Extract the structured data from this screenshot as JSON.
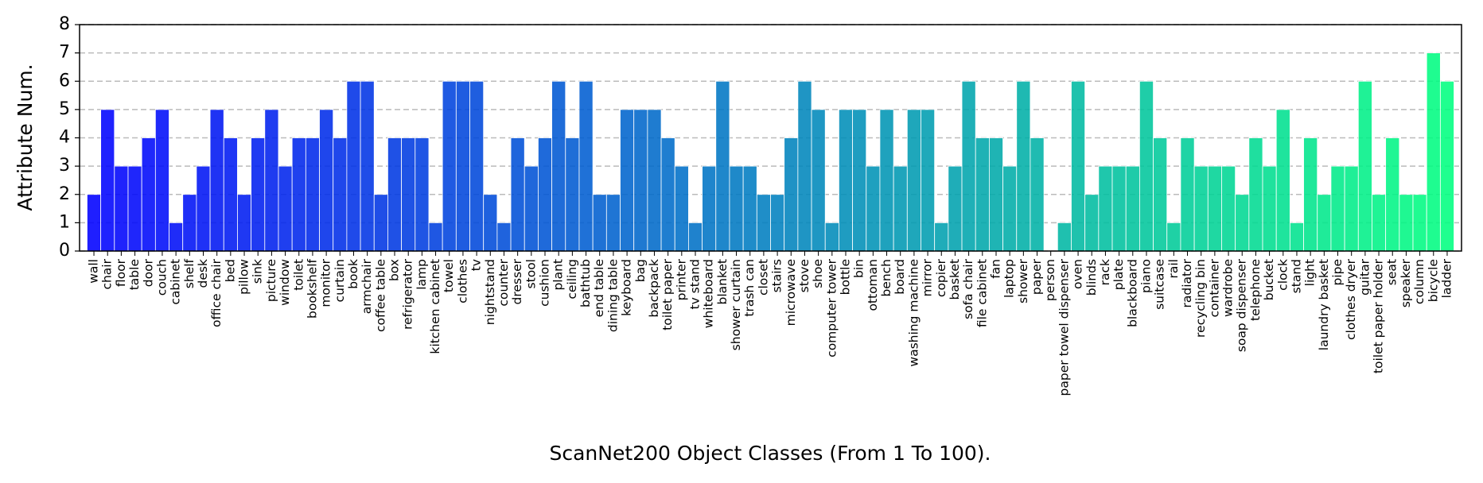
{
  "chart_data": {
    "type": "bar",
    "xlabel": "ScanNet200 Object Classes (From 1 To 100).",
    "ylabel": "Attribute Num.",
    "categories": [
      "wall",
      "chair",
      "floor",
      "table",
      "door",
      "couch",
      "cabinet",
      "shelf",
      "desk",
      "office chair",
      "bed",
      "pillow",
      "sink",
      "picture",
      "window",
      "toilet",
      "bookshelf",
      "monitor",
      "curtain",
      "book",
      "armchair",
      "coffee table",
      "box",
      "refrigerator",
      "lamp",
      "kitchen cabinet",
      "towel",
      "clothes",
      "tv",
      "nightstand",
      "counter",
      "dresser",
      "stool",
      "cushion",
      "plant",
      "ceiling",
      "bathtub",
      "end table",
      "dining table",
      "keyboard",
      "bag",
      "backpack",
      "toilet paper",
      "printer",
      "tv stand",
      "whiteboard",
      "blanket",
      "shower curtain",
      "trash can",
      "closet",
      "stairs",
      "microwave",
      "stove",
      "shoe",
      "computer tower",
      "bottle",
      "bin",
      "ottoman",
      "bench",
      "board",
      "washing machine",
      "mirror",
      "copier",
      "basket",
      "sofa chair",
      "file cabinet",
      "fan",
      "laptop",
      "shower",
      "paper",
      "person",
      "paper towel dispenser",
      "oven",
      "blinds",
      "rack",
      "plate",
      "blackboard",
      "piano",
      "suitcase",
      "rail",
      "radiator",
      "recycling bin",
      "container",
      "wardrobe",
      "soap dispenser",
      "telephone",
      "bucket",
      "clock",
      "stand",
      "light",
      "laundry basket",
      "pipe",
      "clothes dryer",
      "guitar",
      "toilet paper holder",
      "seat",
      "speaker",
      "column",
      "bicycle",
      "ladder"
    ],
    "values": [
      2,
      5,
      3,
      3,
      4,
      5,
      1,
      2,
      3,
      5,
      4,
      2,
      4,
      5,
      3,
      4,
      4,
      5,
      4,
      6,
      6,
      2,
      4,
      4,
      4,
      1,
      6,
      6,
      6,
      2,
      1,
      4,
      3,
      4,
      6,
      4,
      6,
      2,
      2,
      5,
      5,
      5,
      4,
      3,
      1,
      3,
      6,
      3,
      3,
      2,
      2,
      4,
      6,
      5,
      1,
      5,
      5,
      3,
      5,
      3,
      5,
      5,
      1,
      3,
      6,
      4,
      4,
      3,
      6,
      4,
      0,
      1,
      6,
      2,
      3,
      3,
      3,
      6,
      4,
      1,
      4,
      3,
      3,
      3,
      2,
      4,
      3,
      5,
      1,
      4,
      2,
      3,
      3,
      6,
      2,
      4,
      2,
      2,
      7,
      6
    ],
    "colormap": "winter",
    "ylim": [
      0,
      8
    ],
    "yticks": [
      0,
      1,
      2,
      3,
      4,
      5,
      6,
      7,
      8
    ],
    "grid": true
  }
}
